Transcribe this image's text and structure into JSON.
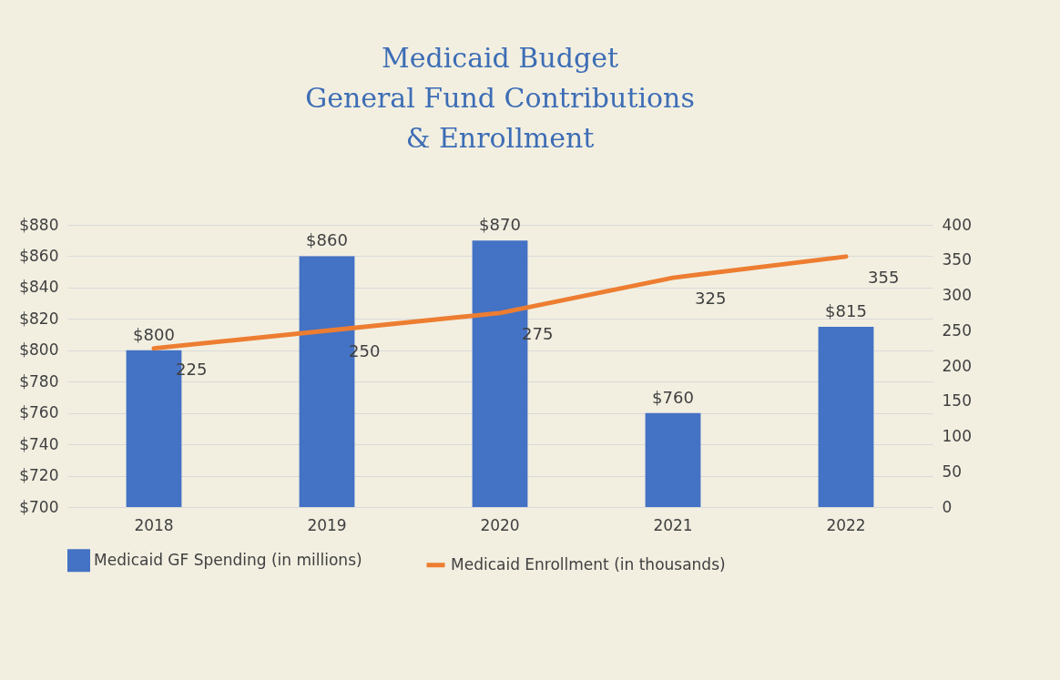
{
  "chart_data": {
    "type": "bar",
    "title": "Medicaid Budget\nGeneral Fund Contributions\n& Enrollment",
    "categories": [
      "2018",
      "2019",
      "2020",
      "2021",
      "2022"
    ],
    "series": [
      {
        "name": "Medicaid GF Spending (in millions)",
        "color": "#4472c4",
        "values": [
          800,
          860,
          870,
          760,
          815
        ],
        "value_labels": [
          "$800",
          "$860",
          "$870",
          "$760",
          "$815"
        ]
      },
      {
        "name": "Medicaid Enrollment (in thousands)",
        "type": "line",
        "axis": "y2",
        "color": "#ed7d31",
        "values": [
          225,
          250,
          275,
          325,
          355
        ],
        "value_labels": [
          "225",
          "250",
          "275",
          "325",
          "355"
        ]
      }
    ],
    "ylim": [
      700,
      880
    ],
    "yticks": [
      {
        "value": 700,
        "label": "$700"
      },
      {
        "value": 720,
        "label": "$720"
      },
      {
        "value": 740,
        "label": "$740"
      },
      {
        "value": 760,
        "label": "$760"
      },
      {
        "value": 780,
        "label": "$780"
      },
      {
        "value": 800,
        "label": "$800"
      },
      {
        "value": 820,
        "label": "$820"
      },
      {
        "value": 840,
        "label": "$840"
      },
      {
        "value": 860,
        "label": "$860"
      },
      {
        "value": 880,
        "label": "$880"
      }
    ],
    "y2lim": [
      0,
      400
    ],
    "y2ticks": [
      0,
      50,
      100,
      150,
      200,
      250,
      300,
      350,
      400
    ],
    "grid": "y",
    "legend": "bottom"
  }
}
